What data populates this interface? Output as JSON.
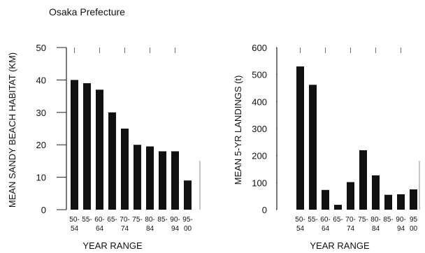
{
  "figure_title": "Osaka Prefecture",
  "chart_data": [
    {
      "type": "bar",
      "title": "",
      "xlabel": "YEAR RANGE",
      "ylabel": "MEAN SANDY BEACH HABITAT (KM)",
      "categories": [
        [
          "50-",
          "54"
        ],
        [
          "55-",
          ""
        ],
        [
          "60-",
          "64"
        ],
        [
          "65-",
          ""
        ],
        [
          "70-",
          "74"
        ],
        [
          "75-",
          ""
        ],
        [
          "80-",
          "84"
        ],
        [
          "85-",
          ""
        ],
        [
          "90-",
          "94"
        ],
        [
          "95-",
          "00"
        ]
      ],
      "values": [
        40,
        39,
        37,
        30,
        25,
        20,
        19.5,
        18,
        18,
        9
      ],
      "ylim": [
        0,
        50
      ],
      "yticks": [
        0,
        10,
        20,
        30,
        40,
        50
      ],
      "color": "#111111"
    },
    {
      "type": "bar",
      "title": "",
      "xlabel": "YEAR RANGE",
      "ylabel": "MEAN 5-YR LANDINGS (t)",
      "categories": [
        [
          "50-",
          "54"
        ],
        [
          "55-",
          ""
        ],
        [
          "60-",
          "64"
        ],
        [
          "65-",
          ""
        ],
        [
          "70-",
          "74"
        ],
        [
          "75-",
          ""
        ],
        [
          "80-",
          "84"
        ],
        [
          "85-",
          ""
        ],
        [
          "90-",
          "94"
        ],
        [
          "95",
          "00"
        ]
      ],
      "values": [
        530,
        462,
        73,
        18,
        102,
        220,
        127,
        55,
        57,
        75
      ],
      "ylim": [
        0,
        600
      ],
      "yticks": [
        0,
        100,
        200,
        300,
        400,
        500,
        600
      ],
      "color": "#111111"
    }
  ]
}
